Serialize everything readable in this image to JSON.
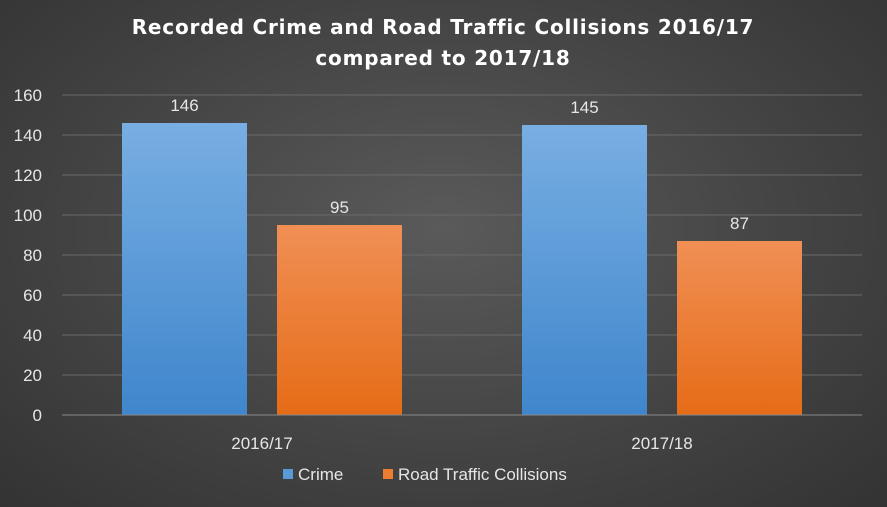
{
  "chart_data": {
    "type": "bar",
    "title_lines": [
      "Recorded Crime and Road Traffic  Collisions 2016/17",
      "compared to 2017/18"
    ],
    "categories": [
      "2016/17",
      "2017/18"
    ],
    "series": [
      {
        "name": "Crime",
        "values": [
          146,
          145
        ],
        "color": "#5b9bd5",
        "color_light": "#78aee2",
        "color_dark": "#3f86cc"
      },
      {
        "name": "Road Traffic Collisions",
        "values": [
          95,
          87
        ],
        "color": "#ed7d31",
        "color_light": "#f08f55",
        "color_dark": "#e66c17"
      }
    ],
    "ylim": [
      0,
      160
    ],
    "yticks": [
      0,
      20,
      40,
      60,
      80,
      100,
      120,
      140,
      160
    ],
    "grid": true,
    "legend_position": "bottom"
  }
}
